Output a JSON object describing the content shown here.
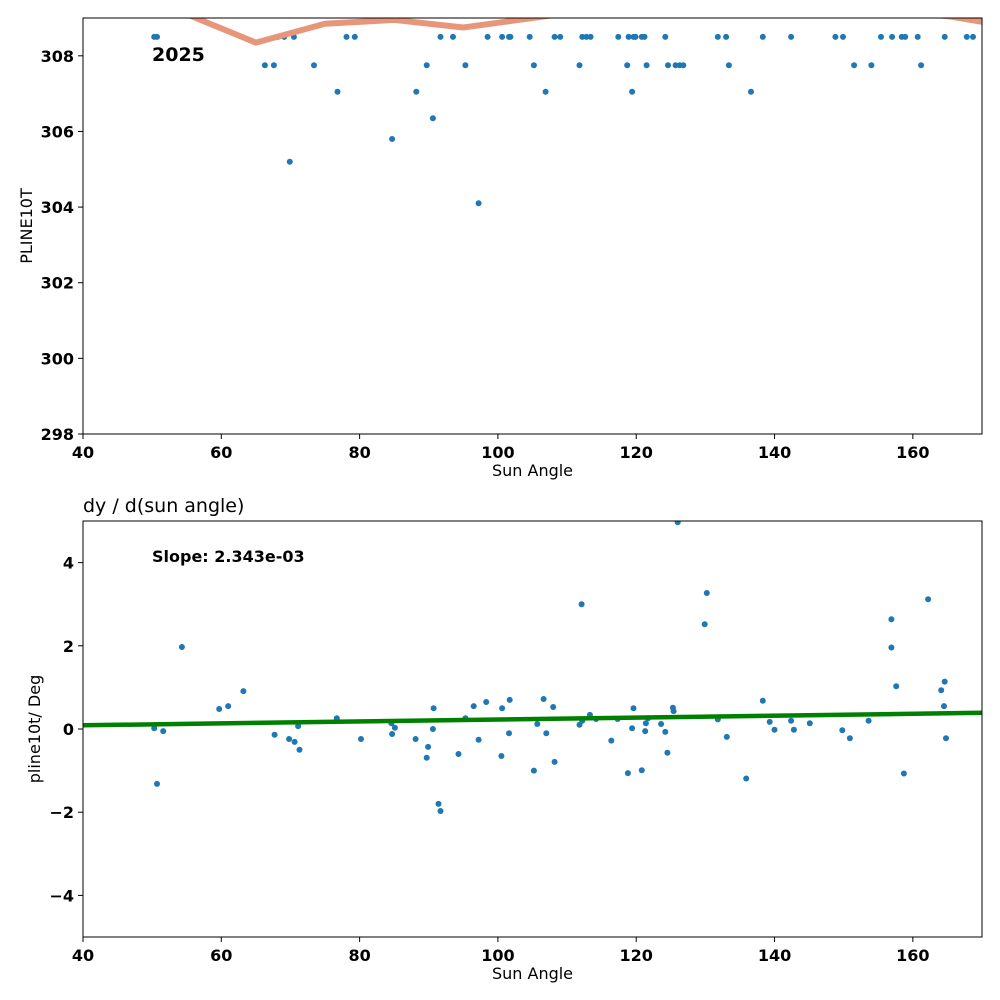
{
  "chart_data": [
    {
      "type": "scatter",
      "title": "",
      "xlabel": "Sun Angle",
      "ylabel": "PLINE10T",
      "xlim": [
        40,
        170
      ],
      "ylim": [
        298,
        309
      ],
      "xticks": [
        40,
        60,
        80,
        100,
        120,
        140,
        160
      ],
      "yticks": [
        298,
        300,
        302,
        304,
        306,
        308
      ],
      "annotation": "2025",
      "series": [
        {
          "type": "scatter",
          "color": "#1f77b4",
          "points": [
            [
              50.3,
              308.5
            ],
            [
              50.7,
              308.5
            ],
            [
              66.3,
              307.75
            ],
            [
              67.6,
              307.75
            ],
            [
              68.2,
              308.5
            ],
            [
              69.1,
              308.5
            ],
            [
              69.9,
              305.2
            ],
            [
              70.5,
              308.5
            ],
            [
              73.4,
              307.75
            ],
            [
              76.8,
              307.05
            ],
            [
              78.1,
              308.5
            ],
            [
              79.3,
              308.5
            ],
            [
              84.7,
              305.8
            ],
            [
              88.2,
              307.05
            ],
            [
              89.7,
              307.75
            ],
            [
              90.6,
              306.35
            ],
            [
              91.7,
              308.5
            ],
            [
              93.5,
              308.5
            ],
            [
              95.3,
              307.75
            ],
            [
              97.2,
              304.1
            ],
            [
              98.5,
              308.5
            ],
            [
              100.6,
              308.5
            ],
            [
              101.6,
              308.5
            ],
            [
              101.8,
              308.5
            ],
            [
              104.6,
              308.5
            ],
            [
              105.2,
              307.75
            ],
            [
              106.9,
              307.05
            ],
            [
              108.2,
              308.5
            ],
            [
              109.0,
              308.5
            ],
            [
              111.8,
              307.75
            ],
            [
              112.2,
              308.5
            ],
            [
              112.8,
              308.5
            ],
            [
              113.4,
              308.5
            ],
            [
              117.4,
              308.5
            ],
            [
              118.7,
              307.75
            ],
            [
              118.9,
              308.5
            ],
            [
              119.4,
              307.05
            ],
            [
              119.6,
              308.5
            ],
            [
              119.9,
              308.5
            ],
            [
              120.8,
              308.5
            ],
            [
              121.2,
              308.5
            ],
            [
              121.5,
              307.75
            ],
            [
              124.2,
              308.5
            ],
            [
              124.6,
              307.75
            ],
            [
              125.7,
              307.75
            ],
            [
              126.3,
              307.75
            ],
            [
              126.8,
              307.75
            ],
            [
              131.8,
              308.5
            ],
            [
              133.0,
              308.5
            ],
            [
              133.4,
              307.75
            ],
            [
              136.6,
              307.05
            ],
            [
              138.3,
              308.5
            ],
            [
              142.4,
              308.5
            ],
            [
              148.8,
              308.5
            ],
            [
              149.9,
              308.5
            ],
            [
              151.5,
              307.75
            ],
            [
              154.0,
              307.75
            ],
            [
              155.4,
              308.5
            ],
            [
              157.0,
              308.5
            ],
            [
              158.4,
              308.5
            ],
            [
              158.9,
              308.5
            ],
            [
              160.7,
              308.5
            ],
            [
              161.2,
              307.75
            ],
            [
              164.6,
              308.5
            ],
            [
              167.8,
              308.5
            ],
            [
              168.7,
              308.5
            ]
          ]
        },
        {
          "type": "line",
          "color": "#e8967a",
          "points": [
            [
              40,
              309.8
            ],
            [
              55,
              309.1
            ],
            [
              65,
              308.35
            ],
            [
              75,
              308.85
            ],
            [
              85,
              308.95
            ],
            [
              95,
              308.75
            ],
            [
              105,
              309.0
            ],
            [
              115,
              309.25
            ],
            [
              125,
              309.1
            ],
            [
              140,
              309.2
            ],
            [
              155,
              309.2
            ],
            [
              165,
              309.05
            ],
            [
              170,
              308.9
            ]
          ]
        }
      ]
    },
    {
      "type": "scatter",
      "title": "dy / d(sun angle)",
      "xlabel": "Sun Angle",
      "ylabel": "pline10t/ Deg",
      "xlim": [
        40,
        170
      ],
      "ylim": [
        -5,
        5
      ],
      "xticks": [
        40,
        60,
        80,
        100,
        120,
        140,
        160
      ],
      "yticks": [
        -4,
        -2,
        0,
        2,
        4
      ],
      "ytick_labels": [
        "−4",
        "−2",
        "0",
        "2",
        "4"
      ],
      "annotation": "Slope: 2.343e-03",
      "series": [
        {
          "type": "scatter",
          "color": "#1f77b4",
          "points": [
            [
              50.3,
              0.02
            ],
            [
              50.7,
              -1.32
            ],
            [
              51.6,
              -0.05
            ],
            [
              54.3,
              1.97
            ],
            [
              59.7,
              0.48
            ],
            [
              61.0,
              0.55
            ],
            [
              63.2,
              0.91
            ],
            [
              67.7,
              -0.14
            ],
            [
              69.8,
              -0.24
            ],
            [
              70.6,
              -0.31
            ],
            [
              71.1,
              0.07
            ],
            [
              71.3,
              -0.5
            ],
            [
              76.7,
              0.26
            ],
            [
              80.2,
              -0.24
            ],
            [
              84.6,
              0.14
            ],
            [
              84.7,
              -0.12
            ],
            [
              85.1,
              0.03
            ],
            [
              88.1,
              -0.24
            ],
            [
              89.7,
              -0.69
            ],
            [
              89.9,
              -0.43
            ],
            [
              90.6,
              0.0
            ],
            [
              90.7,
              0.5
            ],
            [
              91.4,
              -1.8
            ],
            [
              91.7,
              -1.97
            ],
            [
              94.3,
              -0.6
            ],
            [
              95.3,
              0.26
            ],
            [
              96.5,
              0.55
            ],
            [
              97.2,
              -0.26
            ],
            [
              98.3,
              0.65
            ],
            [
              100.5,
              -0.65
            ],
            [
              100.6,
              0.5
            ],
            [
              101.6,
              -0.1
            ],
            [
              101.7,
              0.7
            ],
            [
              105.2,
              -1.0
            ],
            [
              105.7,
              0.12
            ],
            [
              106.6,
              0.72
            ],
            [
              107.0,
              -0.1
            ],
            [
              108.0,
              0.53
            ],
            [
              108.2,
              -0.79
            ],
            [
              111.8,
              0.1
            ],
            [
              112.1,
              3.0
            ],
            [
              112.2,
              0.2
            ],
            [
              113.3,
              0.34
            ],
            [
              114.2,
              0.24
            ],
            [
              116.4,
              -0.28
            ],
            [
              117.3,
              0.24
            ],
            [
              118.8,
              -1.06
            ],
            [
              119.4,
              0.02
            ],
            [
              119.6,
              0.5
            ],
            [
              120.8,
              -0.99
            ],
            [
              121.3,
              -0.05
            ],
            [
              121.4,
              0.14
            ],
            [
              121.7,
              0.26
            ],
            [
              123.6,
              0.12
            ],
            [
              124.2,
              -0.07
            ],
            [
              124.5,
              -0.57
            ],
            [
              125.3,
              0.51
            ],
            [
              125.4,
              0.43
            ],
            [
              126.0,
              4.97
            ],
            [
              129.9,
              2.52
            ],
            [
              130.2,
              3.27
            ],
            [
              131.8,
              0.23
            ],
            [
              133.1,
              -0.19
            ],
            [
              135.9,
              -1.19
            ],
            [
              138.3,
              0.68
            ],
            [
              139.3,
              0.17
            ],
            [
              140.0,
              -0.02
            ],
            [
              142.4,
              0.2
            ],
            [
              142.8,
              -0.02
            ],
            [
              145.1,
              0.14
            ],
            [
              149.8,
              -0.03
            ],
            [
              150.9,
              -0.22
            ],
            [
              153.6,
              0.2
            ],
            [
              156.9,
              2.64
            ],
            [
              156.9,
              1.96
            ],
            [
              157.6,
              1.03
            ],
            [
              158.7,
              -1.07
            ],
            [
              162.2,
              3.12
            ],
            [
              164.1,
              0.93
            ],
            [
              164.5,
              0.55
            ],
            [
              164.6,
              1.14
            ],
            [
              164.8,
              -0.22
            ]
          ]
        },
        {
          "type": "line",
          "color": "#008000",
          "points": [
            [
              40,
              0.09
            ],
            [
              170,
              0.39
            ]
          ]
        }
      ]
    }
  ]
}
